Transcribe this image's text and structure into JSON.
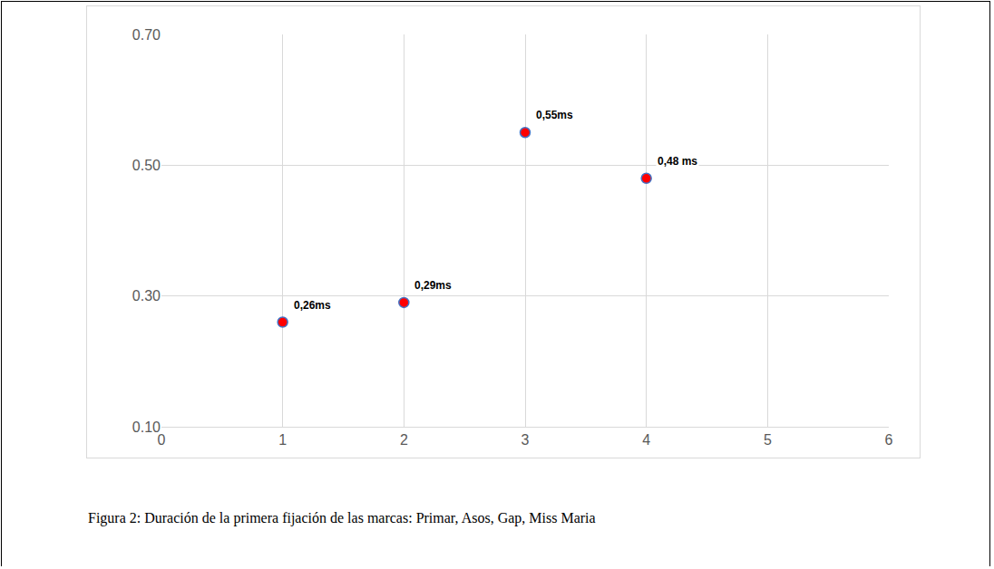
{
  "chart_data": {
    "type": "scatter",
    "caption": "Figura 2: Duración de la primera fijación de las marcas: Primar, Asos, Gap, Miss Maria",
    "x": [
      1,
      2,
      3,
      4
    ],
    "values": [
      0.26,
      0.29,
      0.55,
      0.48
    ],
    "value_labels": [
      "0,26ms",
      "0,29ms",
      "0,55ms",
      "0,48 ms"
    ],
    "data_labels": true,
    "color": "#ff0000",
    "marker": "circle",
    "xlim": [
      0,
      6
    ],
    "xticks": [
      0,
      1,
      2,
      3,
      4,
      5,
      6
    ],
    "ylim": [
      0.1,
      0.7
    ],
    "yticks": [
      {
        "value": 0.1,
        "label": "0.10"
      },
      {
        "value": 0.3,
        "label": "0.30"
      },
      {
        "value": 0.5,
        "label": "0.50"
      },
      {
        "value": 0.7,
        "label": "0.70"
      }
    ],
    "grid": true
  }
}
